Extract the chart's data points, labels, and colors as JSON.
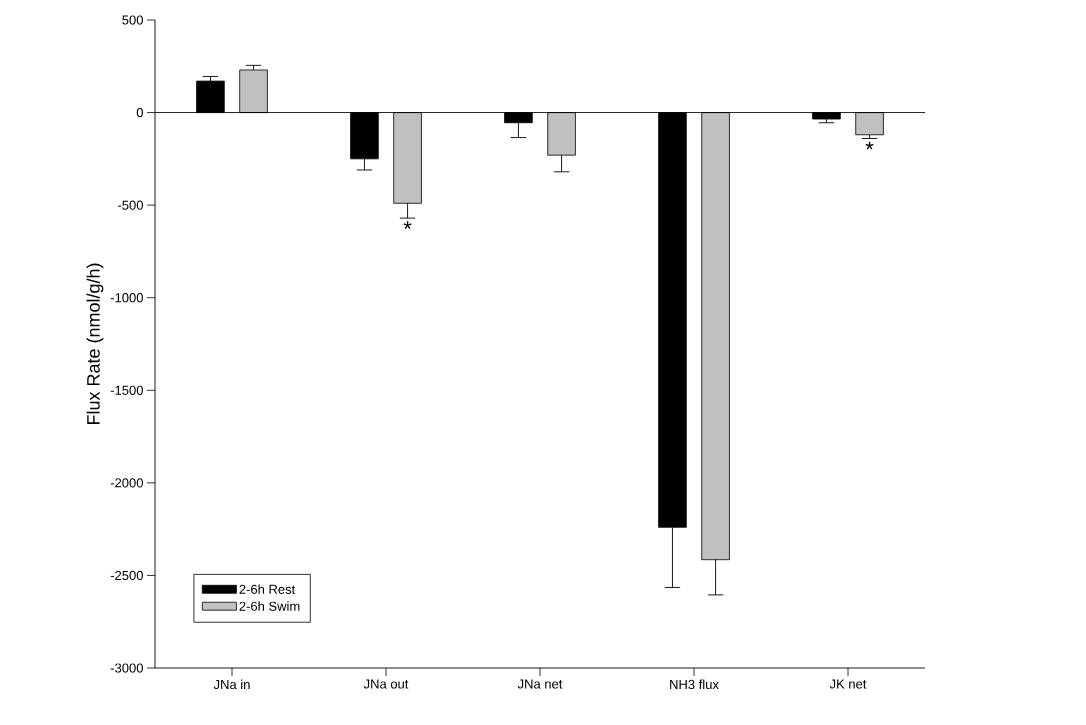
{
  "chart_data": {
    "type": "bar",
    "ylabel": "Flux Rate (nmol/g/h)",
    "categories": [
      "JNa in",
      "JNa out",
      "JNa net",
      "NH3 flux",
      "JK net"
    ],
    "series": [
      {
        "name": "2-6h Rest",
        "color": "#000000",
        "values": [
          170,
          -250,
          -55,
          -2240,
          -35
        ],
        "errors": [
          25,
          60,
          80,
          325,
          20
        ]
      },
      {
        "name": "2-6h Swim",
        "color": "#c0c0c0",
        "values": [
          230,
          -490,
          -230,
          -2415,
          -120
        ],
        "errors": [
          25,
          80,
          90,
          190,
          20
        ],
        "value_labels": [
          null,
          "*",
          null,
          null,
          "*"
        ]
      }
    ],
    "ylim": [
      -3000,
      500
    ],
    "yticks": [
      -3000,
      -2500,
      -2000,
      -1500,
      -1000,
      -500,
      0,
      500
    ],
    "ref_lines": [
      {
        "axis": "y",
        "value": 0
      }
    ],
    "legend": "bottom left",
    "grid": false
  }
}
